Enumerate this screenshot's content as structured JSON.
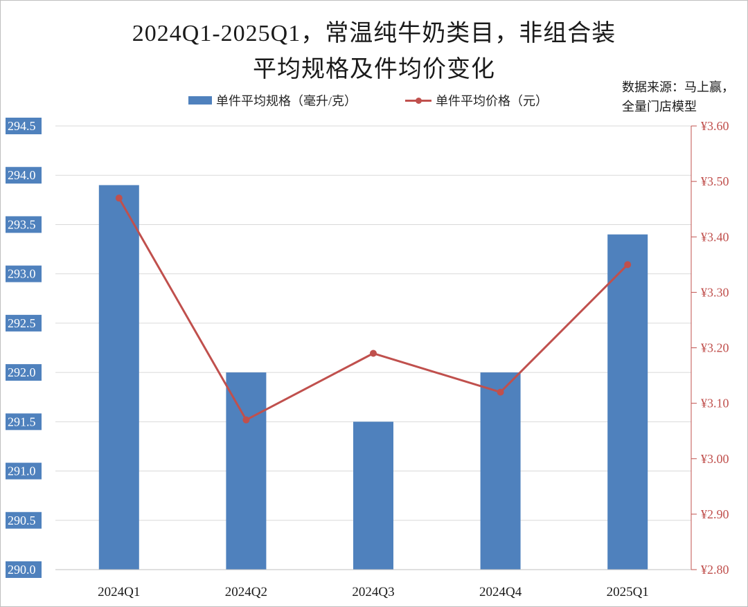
{
  "title_lines": [
    "2024Q1-2025Q1，常温纯牛奶类目，非组合装",
    "平均规格及件均价变化"
  ],
  "source_lines": [
    "数据来源：马上赢，",
    "全量门店模型"
  ],
  "colors": {
    "bar": "#4f81bd",
    "line": "#c0504d",
    "grid": "#d9d9d9"
  },
  "chart_data": {
    "type": "bar",
    "title": "2024Q1-2025Q1，常温纯牛奶类目，非组合装平均规格及件均价变化",
    "categories": [
      "2024Q1",
      "2024Q2",
      "2024Q3",
      "2024Q4",
      "2025Q1"
    ],
    "series": [
      {
        "name": "单件平均规格（毫升/克）",
        "type": "bar",
        "axis": "left",
        "values": [
          293.9,
          292.0,
          291.5,
          292.0,
          293.4
        ]
      },
      {
        "name": "单件平均价格（元）",
        "type": "line",
        "axis": "right",
        "values": [
          3.47,
          3.07,
          3.19,
          3.12,
          3.35
        ]
      }
    ],
    "y_left": {
      "min": 290.0,
      "max": 294.5,
      "ticks": [
        "290.0",
        "290.5",
        "291.0",
        "291.5",
        "292.0",
        "292.5",
        "293.0",
        "293.5",
        "294.0",
        "294.5"
      ]
    },
    "y_right": {
      "min": 2.8,
      "max": 3.6,
      "ticks": [
        "¥2.80",
        "¥2.90",
        "¥3.00",
        "¥3.10",
        "¥3.20",
        "¥3.30",
        "¥3.40",
        "¥3.50",
        "¥3.60"
      ]
    },
    "grid": true,
    "legend_position": "top"
  }
}
